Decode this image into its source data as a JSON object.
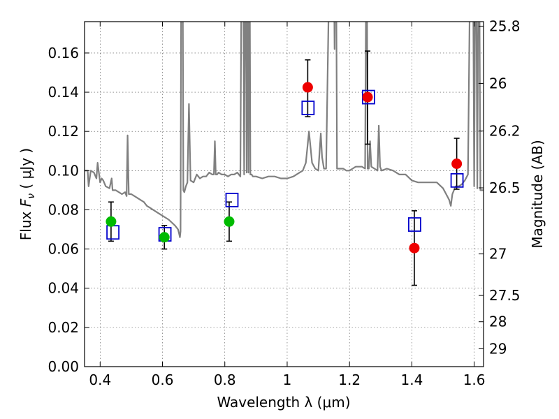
{
  "chart_data": {
    "type": "scatter",
    "xlabel": "Wavelength  λ (μm)",
    "ylabel": "Flux  F_ν  ( μJy )",
    "ylabel_parts": [
      "Flux  ",
      "F",
      "ν",
      "  ( μJy )"
    ],
    "y2label": "Magnitude (AB)",
    "xlim": [
      0.35,
      1.63
    ],
    "ylim": [
      0.0,
      0.176
    ],
    "grid": true,
    "x_ticks": [
      0.4,
      0.6,
      0.8,
      1.0,
      1.2,
      1.4,
      1.6
    ],
    "x_tick_labels": [
      "0.4",
      "0.6",
      "0.8",
      "1",
      "1.2",
      "1.4",
      "1.6"
    ],
    "y_ticks": [
      0.0,
      0.02,
      0.04,
      0.06,
      0.08,
      0.1,
      0.12,
      0.14,
      0.16
    ],
    "y_tick_labels": [
      "0.00",
      "0.02",
      "0.04",
      "0.06",
      "0.08",
      "0.10",
      "0.12",
      "0.14",
      "0.16"
    ],
    "y2_ticks": [
      {
        "label": "25.8",
        "flux": 0.1737
      },
      {
        "label": "26",
        "flux": 0.1445
      },
      {
        "label": "26.2",
        "flux": 0.1202
      },
      {
        "label": "26.5",
        "flux": 0.0912
      },
      {
        "label": "27",
        "flux": 0.0575
      },
      {
        "label": "27.5",
        "flux": 0.0363
      },
      {
        "label": "28",
        "flux": 0.0229
      },
      {
        "label": "29",
        "flux": 0.0091
      }
    ],
    "colors": {
      "model": "#808080",
      "green": "#00bb00",
      "red": "#ee0000",
      "model_box": "#0000cc",
      "errorbar": "#000000"
    },
    "series": [
      {
        "kind": "observed-green",
        "points": [
          {
            "x": 0.435,
            "y": 0.074,
            "err": 0.0
          },
          {
            "x": 0.606,
            "y": 0.066,
            "err": 0.0
          },
          {
            "x": 0.814,
            "y": 0.074,
            "err": 0.01
          }
        ]
      },
      {
        "kind": "observed-red",
        "points": [
          {
            "x": 1.066,
            "y": 0.1425,
            "err": 0.0
          },
          {
            "x": 1.258,
            "y": 0.1375,
            "err": 0.0
          },
          {
            "x": 1.408,
            "y": 0.0605,
            "err": 0.0
          },
          {
            "x": 1.544,
            "y": 0.1035,
            "err": 0.0
          }
        ]
      },
      {
        "kind": "errorbars",
        "points": [
          {
            "x": 0.435,
            "lo": 0.064,
            "hi": 0.084
          },
          {
            "x": 0.606,
            "lo": 0.06,
            "hi": 0.072
          },
          {
            "x": 0.814,
            "lo": 0.064,
            "hi": 0.084
          },
          {
            "x": 1.066,
            "lo": 0.1275,
            "hi": 0.1565
          },
          {
            "x": 1.258,
            "lo": 0.1135,
            "hi": 0.161
          },
          {
            "x": 1.408,
            "lo": 0.0415,
            "hi": 0.0795
          },
          {
            "x": 1.544,
            "lo": 0.0905,
            "hi": 0.1165
          }
        ]
      },
      {
        "kind": "model-photometry",
        "points": [
          {
            "x": 0.441,
            "y": 0.0685
          },
          {
            "x": 0.608,
            "y": 0.0675
          },
          {
            "x": 0.823,
            "y": 0.085
          },
          {
            "x": 1.067,
            "y": 0.132
          },
          {
            "x": 1.261,
            "y": 0.1375
          },
          {
            "x": 1.409,
            "y": 0.0725
          },
          {
            "x": 1.545,
            "y": 0.095
          }
        ]
      },
      {
        "kind": "model-spectrum",
        "x": [
          0.35,
          0.36,
          0.363,
          0.37,
          0.38,
          0.388,
          0.392,
          0.4,
          0.405,
          0.41,
          0.418,
          0.43,
          0.437,
          0.44,
          0.45,
          0.46,
          0.47,
          0.48,
          0.485,
          0.488,
          0.492,
          0.5,
          0.51,
          0.52,
          0.53,
          0.54,
          0.55,
          0.56,
          0.58,
          0.6,
          0.62,
          0.64,
          0.65,
          0.653,
          0.656,
          0.658,
          0.661,
          0.664,
          0.667,
          0.67,
          0.675,
          0.68,
          0.685,
          0.69,
          0.7,
          0.71,
          0.72,
          0.73,
          0.74,
          0.75,
          0.76,
          0.765,
          0.768,
          0.771,
          0.775,
          0.78,
          0.79,
          0.8,
          0.81,
          0.82,
          0.83,
          0.84,
          0.85,
          0.855,
          0.858,
          0.862,
          0.866,
          0.87,
          0.873,
          0.876,
          0.879,
          0.882,
          0.886,
          0.89,
          0.9,
          0.92,
          0.94,
          0.96,
          0.98,
          1.0,
          1.02,
          1.04,
          1.05,
          1.06,
          1.07,
          1.08,
          1.09,
          1.1,
          1.105,
          1.108,
          1.112,
          1.118,
          1.125,
          1.14,
          1.148,
          1.152,
          1.156,
          1.16,
          1.17,
          1.18,
          1.19,
          1.2,
          1.21,
          1.22,
          1.23,
          1.24,
          1.25,
          1.255,
          1.258,
          1.262,
          1.266,
          1.27,
          1.28,
          1.29,
          1.294,
          1.298,
          1.303,
          1.32,
          1.34,
          1.36,
          1.38,
          1.4,
          1.42,
          1.44,
          1.46,
          1.48,
          1.5,
          1.51,
          1.52,
          1.525,
          1.53,
          1.54,
          1.55,
          1.56,
          1.57,
          1.58,
          1.59,
          1.595,
          1.6,
          1.605,
          1.61,
          1.615,
          1.62,
          1.63
        ],
        "y": [
          0.1,
          0.1,
          0.092,
          0.1,
          0.099,
          0.096,
          0.104,
          0.094,
          0.096,
          0.095,
          0.092,
          0.091,
          0.096,
          0.09,
          0.09,
          0.089,
          0.088,
          0.089,
          0.087,
          0.118,
          0.088,
          0.088,
          0.087,
          0.086,
          0.085,
          0.084,
          0.082,
          0.081,
          0.079,
          0.077,
          0.075,
          0.072,
          0.07,
          0.068,
          0.066,
          0.069,
          0.25,
          0.25,
          0.09,
          0.089,
          0.092,
          0.094,
          0.134,
          0.095,
          0.094,
          0.098,
          0.096,
          0.097,
          0.097,
          0.099,
          0.098,
          0.098,
          0.115,
          0.098,
          0.098,
          0.099,
          0.098,
          0.098,
          0.097,
          0.098,
          0.098,
          0.099,
          0.097,
          0.25,
          0.25,
          0.098,
          0.25,
          0.099,
          0.25,
          0.099,
          0.25,
          0.098,
          0.098,
          0.097,
          0.097,
          0.096,
          0.097,
          0.097,
          0.096,
          0.096,
          0.097,
          0.099,
          0.1,
          0.104,
          0.12,
          0.104,
          0.101,
          0.1,
          0.112,
          0.119,
          0.107,
          0.101,
          0.101,
          0.25,
          0.25,
          0.162,
          0.25,
          0.101,
          0.101,
          0.101,
          0.1,
          0.1,
          0.101,
          0.102,
          0.102,
          0.102,
          0.101,
          0.25,
          0.101,
          0.101,
          0.115,
          0.102,
          0.101,
          0.1,
          0.123,
          0.102,
          0.1,
          0.101,
          0.1,
          0.098,
          0.098,
          0.095,
          0.094,
          0.094,
          0.094,
          0.094,
          0.091,
          0.088,
          0.085,
          0.082,
          0.088,
          0.092,
          0.092,
          0.093,
          0.095,
          0.098,
          0.25,
          0.25,
          0.092,
          0.25,
          0.091,
          0.25,
          0.09,
          0.09
        ]
      }
    ]
  }
}
